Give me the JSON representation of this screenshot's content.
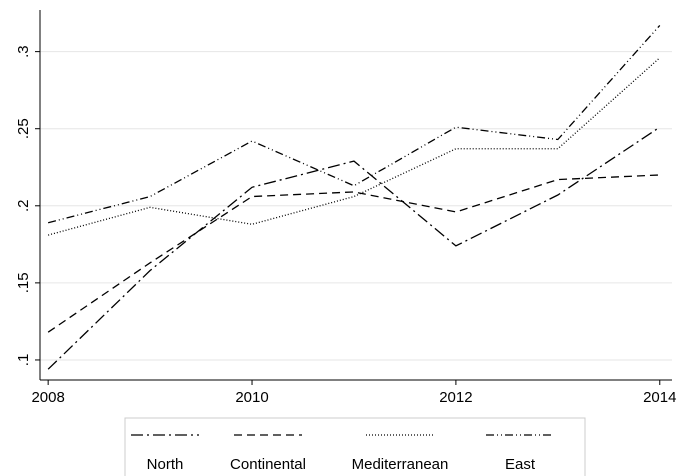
{
  "chart_data": {
    "type": "line",
    "x": [
      2008,
      2009,
      2010,
      2011,
      2012,
      2013,
      2014
    ],
    "series": [
      {
        "name": "North",
        "color": "#000000",
        "dash": "12,4,2,4",
        "values": [
          0.094,
          0.158,
          0.212,
          0.229,
          0.174,
          0.207,
          0.251
        ]
      },
      {
        "name": "Continental",
        "color": "#000000",
        "dash": "8,5",
        "values": [
          0.118,
          0.163,
          0.206,
          0.209,
          0.196,
          0.217,
          0.22
        ]
      },
      {
        "name": "Mediterranean",
        "color": "#000000",
        "dash": "1,2",
        "values": [
          0.181,
          0.199,
          0.188,
          0.206,
          0.237,
          0.237,
          0.296
        ]
      },
      {
        "name": "East",
        "color": "#000000",
        "dash": "8,3,1,3,1,3",
        "values": [
          0.189,
          0.206,
          0.242,
          0.213,
          0.251,
          0.243,
          0.317
        ]
      }
    ],
    "xlim": [
      2007.92,
      2014.12
    ],
    "xticks": [
      2008,
      2010,
      2012,
      2014
    ],
    "ylim": [
      0.087,
      0.327
    ],
    "yticks": [
      {
        "value": 0.1,
        "label": ".1"
      },
      {
        "value": 0.15,
        "label": ".15"
      },
      {
        "value": 0.2,
        "label": ".2"
      },
      {
        "value": 0.25,
        "label": ".25"
      },
      {
        "value": 0.3,
        "label": ".3"
      }
    ],
    "grid": true,
    "legend": "bottom"
  }
}
